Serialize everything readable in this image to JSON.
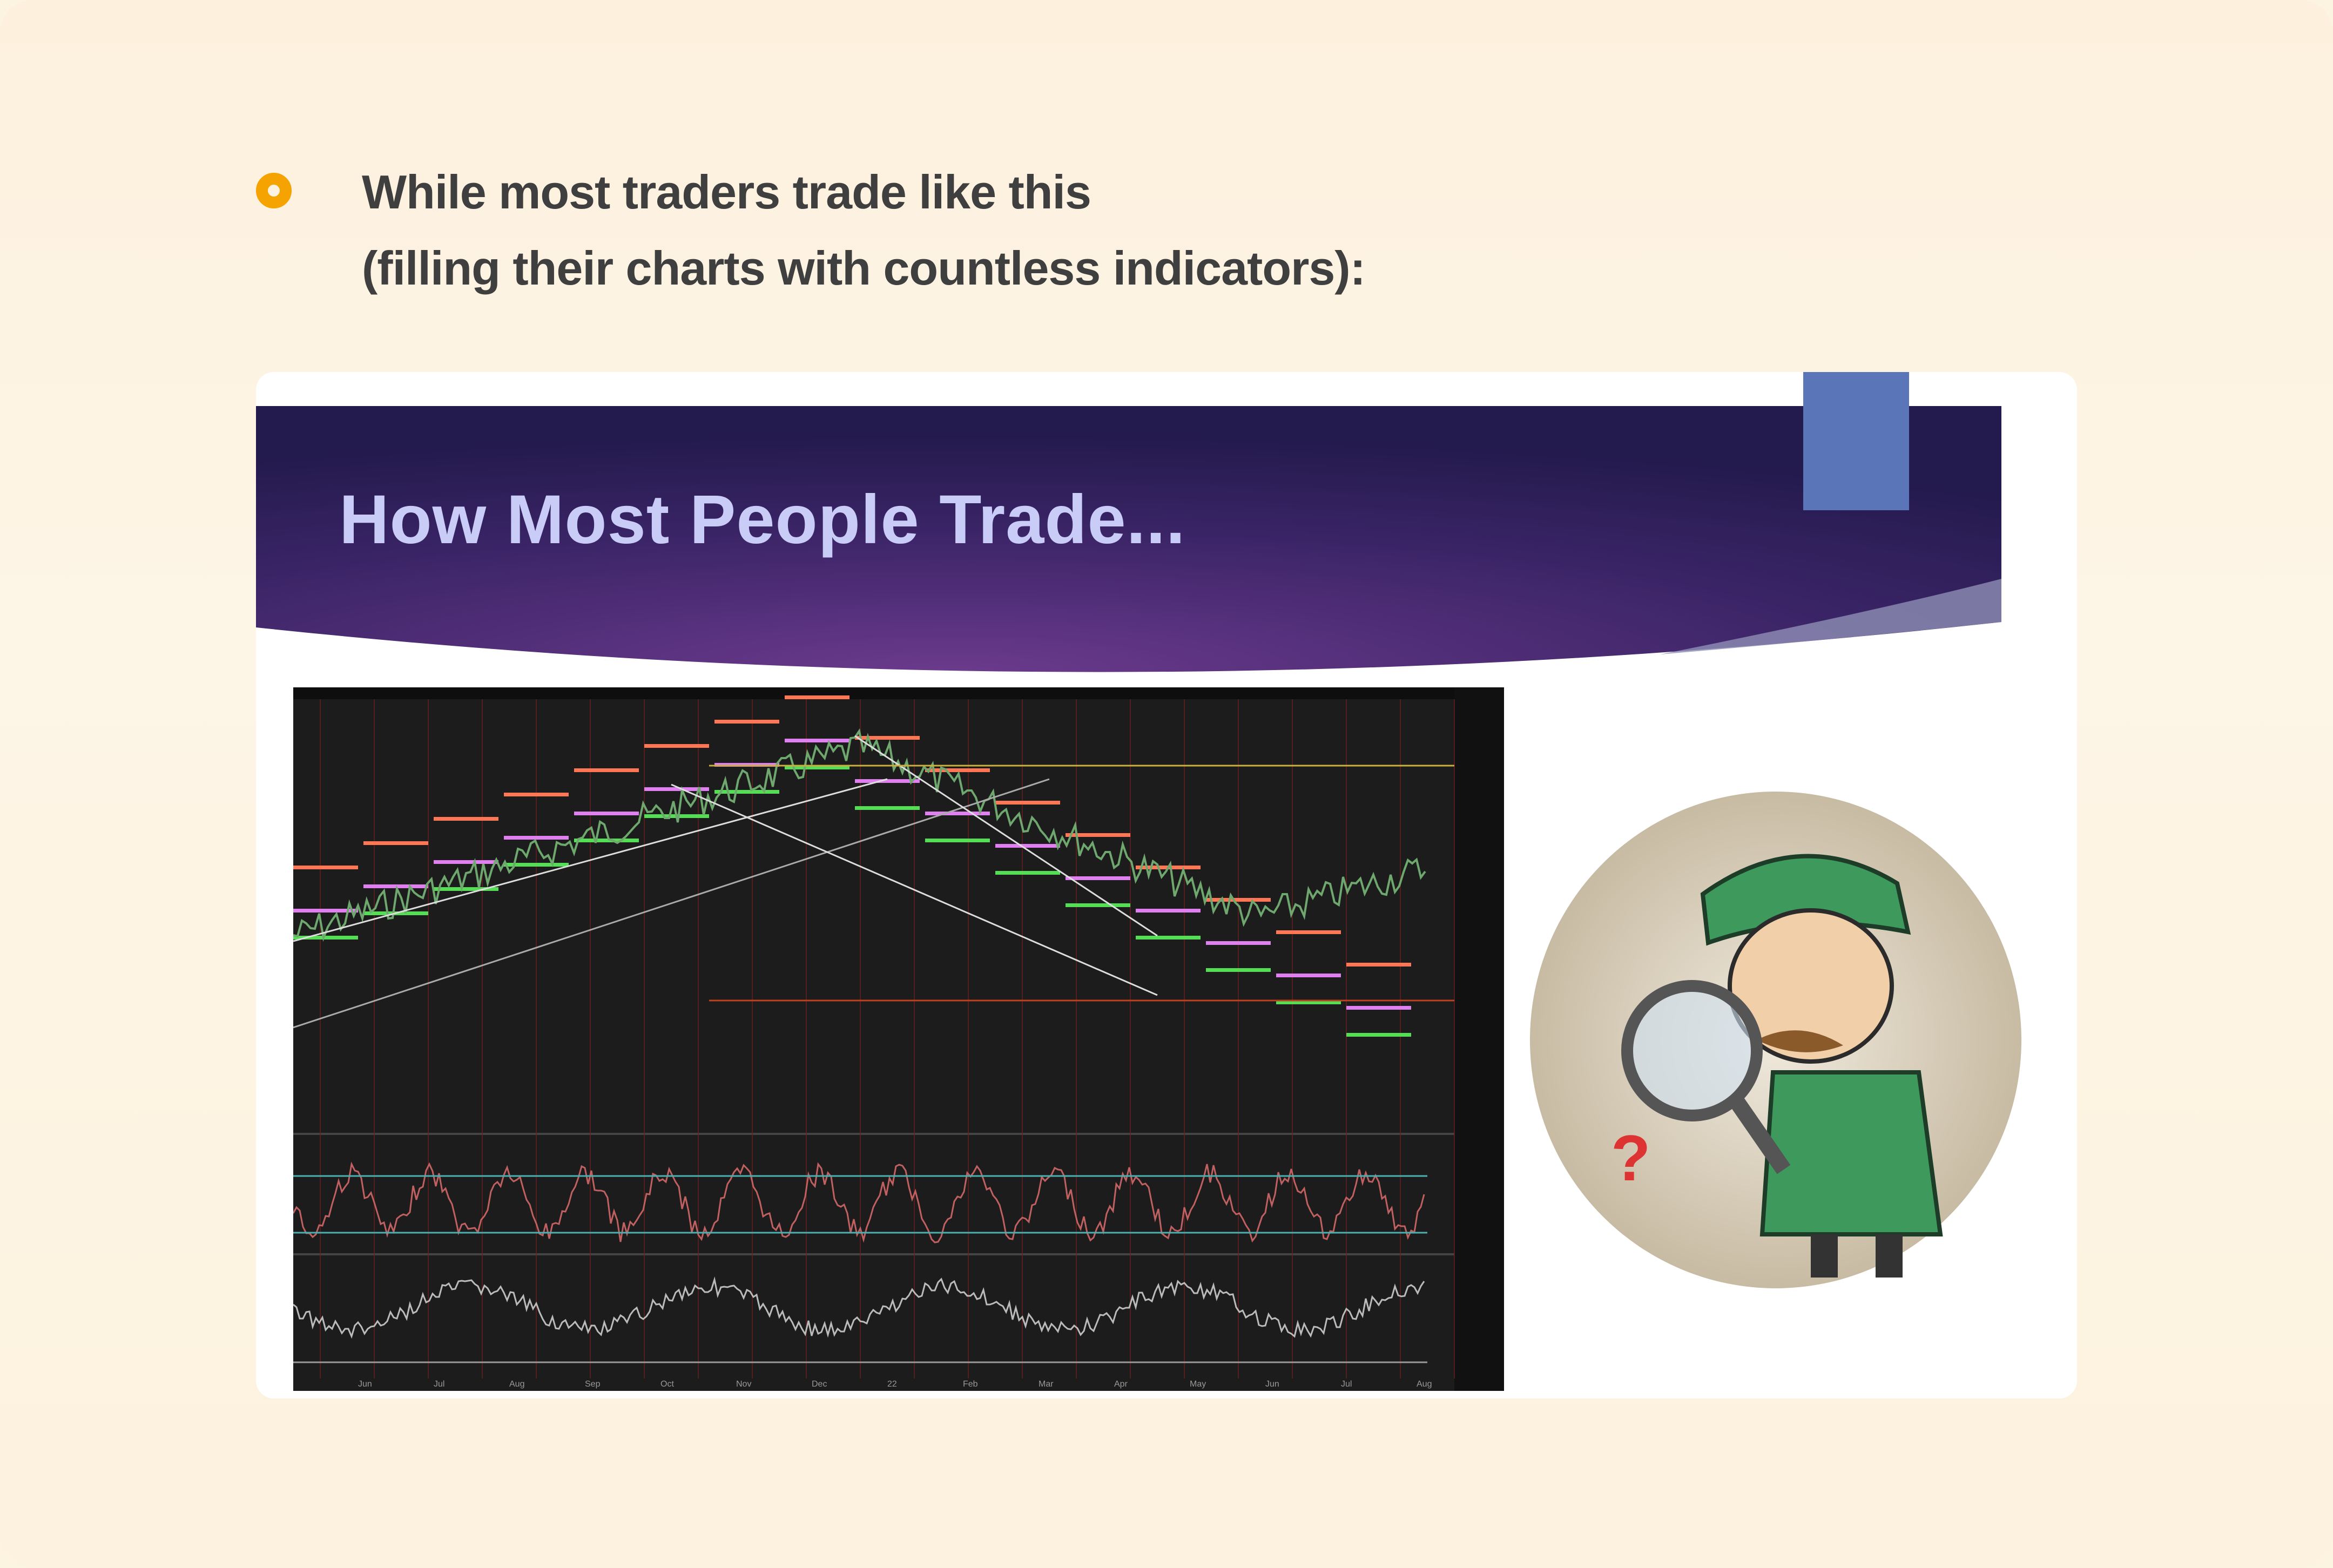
{
  "bullet": {
    "icon": "ring-bullet-icon",
    "color": "#f5a300",
    "line1": "While most traders trade like this",
    "line2": "(filling their charts with countless indicators):"
  },
  "slide": {
    "title": "How Most People Trade...",
    "banner_color": "#3a2466",
    "accent_square_color": "#5b76b8",
    "chart_months": [
      "Jun",
      "Jul",
      "Aug",
      "Sep",
      "Oct",
      "Nov",
      "Dec",
      "22",
      "Feb",
      "Mar",
      "Apr",
      "May",
      "Jun",
      "Jul",
      "Aug"
    ],
    "illustration": "detective-with-magnifying-glass"
  }
}
